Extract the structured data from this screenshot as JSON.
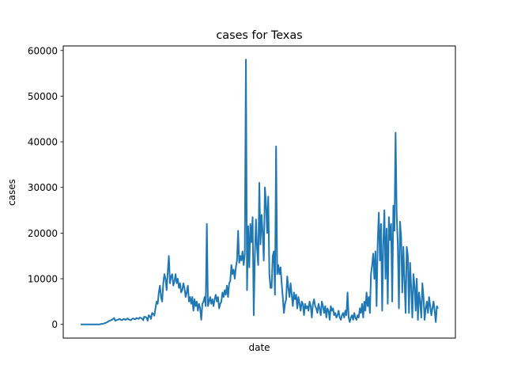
{
  "chart_data": {
    "type": "line",
    "title": "cases for Texas",
    "xlabel": "date",
    "ylabel": "cases",
    "x_tick_labels": [],
    "ylim": [
      -3000,
      61000
    ],
    "yticks": [
      0,
      10000,
      20000,
      30000,
      40000,
      50000,
      60000
    ],
    "ytick_labels": [
      "0",
      "10000",
      "20000",
      "30000",
      "40000",
      "50000",
      "60000"
    ],
    "grid": false,
    "legend": "none",
    "line_color": "#1f77b4",
    "series": [
      {
        "values": [
          0,
          0,
          0,
          0,
          0,
          0,
          0,
          0,
          0,
          0,
          0,
          0,
          0,
          0,
          0,
          0,
          0,
          0,
          50,
          100,
          150,
          200,
          300,
          400,
          500,
          700,
          800,
          900,
          1000,
          1200,
          1400,
          800,
          900,
          1000,
          1100,
          1200,
          1000,
          900,
          1100,
          1200,
          1000,
          1100,
          1300,
          1100,
          1000,
          900,
          1200,
          1300,
          1200,
          1100,
          1400,
          1300,
          1200,
          1500,
          1400,
          1300,
          900,
          1700,
          1600,
          1500,
          800,
          2000,
          1800,
          1200,
          2500,
          2300,
          1900,
          3500,
          5000,
          4500,
          7000,
          8500,
          6000,
          5000,
          9000,
          11000,
          10000,
          7500,
          11500,
          15000,
          9000,
          10500,
          11000,
          8500,
          9500,
          11000,
          9000,
          10000,
          8000,
          9000,
          7000,
          7500,
          9000,
          8000,
          6000,
          7000,
          8500,
          5000,
          6000,
          4500,
          6000,
          3000,
          5500,
          4000,
          5000,
          3000,
          4500,
          3500,
          1000,
          4500,
          5000,
          6000,
          4000,
          22000,
          4000,
          5000,
          6000,
          4500,
          5500,
          4000,
          5500,
          6500,
          5000,
          6000,
          3500,
          4500,
          5000,
          7000,
          6000,
          7500,
          6500,
          8500,
          6000,
          9000,
          9500,
          13000,
          11000,
          12000,
          10000,
          12500,
          14000,
          20500,
          13500,
          15000,
          14000,
          16000,
          13000,
          15500,
          58000,
          7500,
          21500,
          12500,
          22000,
          18000,
          23500,
          2000,
          15000,
          23000,
          16500,
          13000,
          31000,
          17500,
          24000,
          20000,
          14000,
          30000,
          26500,
          20000,
          28000,
          11000,
          8000,
          8000,
          15000,
          16000,
          6500,
          39000,
          11000,
          13000,
          11000,
          12500,
          9000,
          6000,
          2500,
          4500,
          5500,
          10500,
          8000,
          6000,
          9000,
          6500,
          4000,
          7000,
          5500,
          6500,
          3500,
          6000,
          4500,
          3000,
          5000,
          4500,
          2000,
          4500,
          3500,
          4000,
          3000,
          5000,
          4000,
          1500,
          4500,
          5500,
          4000,
          3500,
          2500,
          4500,
          3500,
          2000,
          5000,
          4000,
          2500,
          4000,
          1500,
          3500,
          3000,
          1000,
          4000,
          3000,
          3500,
          2000,
          2500,
          1500,
          2000,
          3000,
          1500,
          1000,
          2000,
          2500,
          1500,
          3000,
          2000,
          7000,
          1500,
          500,
          1500,
          2000,
          1000,
          2500,
          1500,
          1000,
          2000,
          1500,
          3500,
          2500,
          4500,
          1500,
          5000,
          3000,
          7000,
          4000,
          6000,
          2500,
          11000,
          13000,
          15500,
          10000,
          16000,
          4000,
          18000,
          24500,
          14000,
          22000,
          3000,
          18000,
          25000,
          10000,
          21000,
          4500,
          23500,
          18500,
          22000,
          5000,
          26000,
          20500,
          42000,
          24000,
          17500,
          3500,
          22500,
          19000,
          7000,
          17000,
          9500,
          2500,
          17000,
          15000,
          2500,
          13500,
          8000,
          1500,
          11000,
          8500,
          3000,
          10000,
          1000,
          7000,
          5000,
          1500,
          9000,
          6000,
          1000,
          3500,
          5000,
          2500,
          6000,
          4000,
          2000,
          3500,
          5000,
          3000,
          500,
          4000,
          3500
        ]
      }
    ]
  }
}
